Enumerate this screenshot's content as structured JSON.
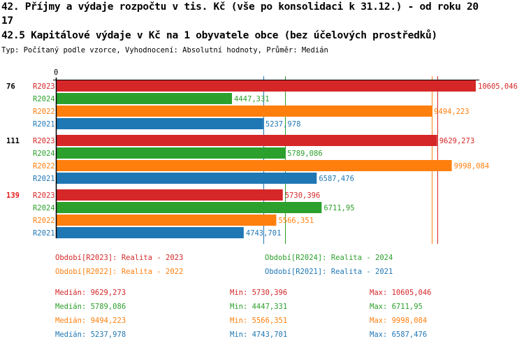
{
  "title_line1": "42. Příjmy a výdaje rozpočtu v tis. Kč (vše po konsolidaci k 31.12.) - od roku 20",
  "title_line2": "17",
  "title_line3": "42.5 Kapitálové výdaje v Kč na 1 obyvatele obce (bez účelových prostředků)",
  "subtitle": "Typ: Počítaný podle vzorce, Vyhodnocení: Absolutní hodnoty, Průměr: Medián",
  "chart_data": {
    "type": "bar",
    "orientation": "horizontal",
    "xlim": [
      0,
      10605.046
    ],
    "zero_label": "0",
    "colors": {
      "R2023": "#d62728",
      "R2024": "#2ca02c",
      "R2022": "#ff7f0e",
      "R2021": "#1f77b4"
    },
    "groups": [
      {
        "label": "76",
        "label_color": "#000000",
        "bars": [
          {
            "series": "R2023",
            "value": 10605.046,
            "text": "10605,046"
          },
          {
            "series": "R2024",
            "value": 4447.331,
            "text": "4447,331"
          },
          {
            "series": "R2022",
            "value": 9494.223,
            "text": "9494,223"
          },
          {
            "series": "R2021",
            "value": 5237.978,
            "text": "5237,978"
          }
        ]
      },
      {
        "label": "111",
        "label_color": "#000000",
        "bars": [
          {
            "series": "R2023",
            "value": 9629.273,
            "text": "9629,273"
          },
          {
            "series": "R2024",
            "value": 5789.086,
            "text": "5789,086"
          },
          {
            "series": "R2022",
            "value": 9998.084,
            "text": "9998,084"
          },
          {
            "series": "R2021",
            "value": 6587.476,
            "text": "6587,476"
          }
        ]
      },
      {
        "label": "139",
        "label_color": "#e31a1c",
        "bars": [
          {
            "series": "R2023",
            "value": 5730.396,
            "text": "5730,396"
          },
          {
            "series": "R2024",
            "value": 6711.95,
            "text": "6711,95"
          },
          {
            "series": "R2022",
            "value": 5566.351,
            "text": "5566,351"
          },
          {
            "series": "R2021",
            "value": 4743.701,
            "text": "4743,701"
          }
        ]
      }
    ],
    "median_lines": [
      {
        "series": "R2023",
        "value": 9629.273
      },
      {
        "series": "R2024",
        "value": 5789.086
      },
      {
        "series": "R2022",
        "value": 9494.223
      },
      {
        "series": "R2021",
        "value": 5237.978
      }
    ],
    "legend": [
      {
        "text": "Období[R2023]: Realita - 2023",
        "color": "#d62728"
      },
      {
        "text": "Období[R2024]: Realita - 2024",
        "color": "#2ca02c"
      },
      {
        "text": "Období[R2022]: Realita - 2022",
        "color": "#ff7f0e"
      },
      {
        "text": "Období[R2021]: Realita - 2021",
        "color": "#1f77b4"
      }
    ],
    "stats": [
      {
        "color": "#d62728",
        "median": "Medián: 9629,273",
        "min": "Min: 5730,396",
        "max": "Max: 10605,046"
      },
      {
        "color": "#2ca02c",
        "median": "Medián: 5789,086",
        "min": "Min: 4447,331",
        "max": "Max: 6711,95"
      },
      {
        "color": "#ff7f0e",
        "median": "Medián: 9494,223",
        "min": "Min: 5566,351",
        "max": "Max: 9998,084"
      },
      {
        "color": "#1f77b4",
        "median": "Medián: 5237,978",
        "min": "Min: 4743,701",
        "max": "Max: 6587,476"
      }
    ]
  }
}
